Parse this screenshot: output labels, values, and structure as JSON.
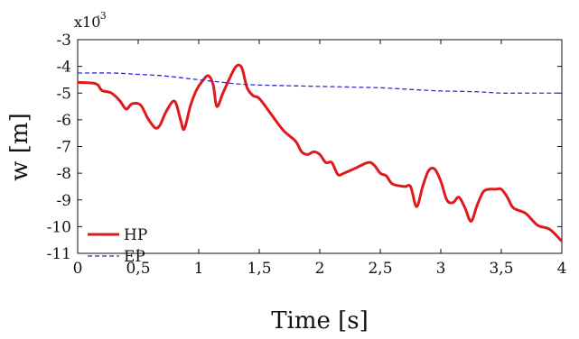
{
  "chart_data": {
    "type": "line",
    "xlabel": "Time [s]",
    "ylabel": "w [m]",
    "xlim": [
      0,
      4
    ],
    "ylim": [
      -11,
      -3
    ],
    "y_scale_note": "x10-3",
    "y_scale_base": "x10",
    "y_scale_exp": "-3",
    "xticks": [
      0,
      0.5,
      1,
      1.5,
      2,
      2.5,
      3,
      3.5,
      4
    ],
    "xtick_labels": [
      "0",
      "0,5",
      "1",
      "1,5",
      "2",
      "2,5",
      "3",
      "3,5",
      "4"
    ],
    "yticks": [
      -3,
      -4,
      -5,
      -6,
      -7,
      -8,
      -9,
      -10,
      -11
    ],
    "ytick_labels": [
      "-3",
      "-4",
      "-5",
      "-6",
      "-7",
      "-8",
      "-9",
      "-10",
      "-11"
    ],
    "grid": false,
    "legend_position": "bottom-left",
    "series": [
      {
        "name": "HP",
        "color": "#e0191c",
        "style": "solid",
        "x": [
          0,
          0.15,
          0.2,
          0.28,
          0.35,
          0.4,
          0.45,
          0.52,
          0.58,
          0.64,
          0.68,
          0.73,
          0.8,
          0.85,
          0.88,
          0.93,
          0.98,
          1.03,
          1.08,
          1.12,
          1.15,
          1.2,
          1.26,
          1.3,
          1.33,
          1.36,
          1.4,
          1.45,
          1.5,
          1.6,
          1.7,
          1.8,
          1.85,
          1.9,
          1.95,
          2.0,
          2.05,
          2.1,
          2.15,
          2.2,
          2.3,
          2.4,
          2.45,
          2.5,
          2.55,
          2.6,
          2.7,
          2.75,
          2.8,
          2.85,
          2.9,
          2.95,
          3.0,
          3.05,
          3.1,
          3.15,
          3.2,
          3.25,
          3.3,
          3.35,
          3.4,
          3.45,
          3.5,
          3.55,
          3.6,
          3.7,
          3.8,
          3.9,
          4.0
        ],
        "y": [
          -4.6,
          -4.65,
          -4.9,
          -5.0,
          -5.3,
          -5.6,
          -5.4,
          -5.45,
          -5.95,
          -6.3,
          -6.2,
          -5.7,
          -5.3,
          -6.0,
          -6.35,
          -5.5,
          -4.9,
          -4.55,
          -4.35,
          -4.7,
          -5.5,
          -5.0,
          -4.4,
          -4.05,
          -3.95,
          -4.1,
          -4.8,
          -5.1,
          -5.2,
          -5.8,
          -6.4,
          -6.8,
          -7.2,
          -7.3,
          -7.2,
          -7.3,
          -7.6,
          -7.6,
          -8.05,
          -8.0,
          -7.8,
          -7.6,
          -7.7,
          -8.0,
          -8.1,
          -8.4,
          -8.5,
          -8.5,
          -9.25,
          -8.5,
          -7.9,
          -7.85,
          -8.3,
          -9.0,
          -9.1,
          -8.9,
          -9.3,
          -9.8,
          -9.2,
          -8.7,
          -8.6,
          -8.6,
          -8.6,
          -8.9,
          -9.3,
          -9.5,
          -9.95,
          -10.1,
          -10.55
        ]
      },
      {
        "name": "EP",
        "color": "#2c2cd8",
        "style": "dashed",
        "x": [
          0,
          0.3,
          0.5,
          0.7,
          0.9,
          1.0,
          1.1,
          1.2,
          1.3,
          1.4,
          1.5,
          1.7,
          2.0,
          2.3,
          2.5,
          2.7,
          2.9,
          3.0,
          3.3,
          3.5,
          3.7,
          4.0
        ],
        "y": [
          -4.25,
          -4.25,
          -4.3,
          -4.35,
          -4.45,
          -4.5,
          -4.55,
          -4.6,
          -4.65,
          -4.68,
          -4.7,
          -4.72,
          -4.75,
          -4.78,
          -4.8,
          -4.85,
          -4.9,
          -4.92,
          -4.95,
          -5.0,
          -5.0,
          -5.0
        ]
      }
    ]
  }
}
